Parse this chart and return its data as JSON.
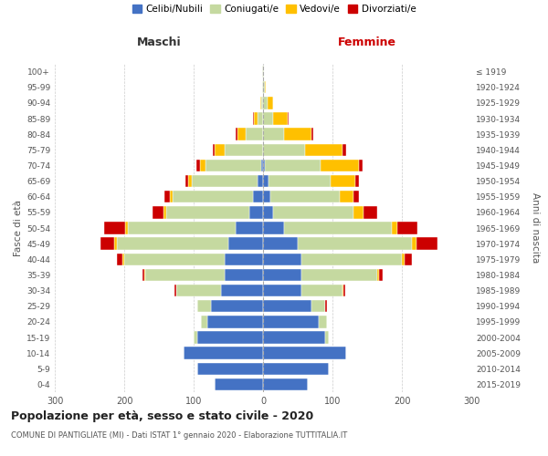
{
  "age_groups": [
    "0-4",
    "5-9",
    "10-14",
    "15-19",
    "20-24",
    "25-29",
    "30-34",
    "35-39",
    "40-44",
    "45-49",
    "50-54",
    "55-59",
    "60-64",
    "65-69",
    "70-74",
    "75-79",
    "80-84",
    "85-89",
    "90-94",
    "95-99",
    "100+"
  ],
  "birth_years": [
    "2015-2019",
    "2010-2014",
    "2005-2009",
    "2000-2004",
    "1995-1999",
    "1990-1994",
    "1985-1989",
    "1980-1984",
    "1975-1979",
    "1970-1974",
    "1965-1969",
    "1960-1964",
    "1955-1959",
    "1950-1954",
    "1945-1949",
    "1940-1944",
    "1935-1939",
    "1930-1934",
    "1925-1929",
    "1920-1924",
    "≤ 1919"
  ],
  "male": {
    "celibi": [
      70,
      95,
      115,
      95,
      80,
      75,
      60,
      55,
      55,
      50,
      40,
      20,
      15,
      8,
      3,
      0,
      0,
      0,
      0,
      0,
      0
    ],
    "coniugati": [
      0,
      0,
      0,
      5,
      10,
      20,
      65,
      115,
      145,
      160,
      155,
      120,
      115,
      95,
      80,
      55,
      25,
      8,
      2,
      1,
      1
    ],
    "vedovi": [
      0,
      0,
      0,
      0,
      0,
      0,
      0,
      1,
      2,
      4,
      4,
      4,
      4,
      5,
      8,
      15,
      12,
      5,
      2,
      0,
      0
    ],
    "divorziati": [
      0,
      0,
      0,
      0,
      0,
      0,
      2,
      3,
      8,
      20,
      30,
      15,
      8,
      4,
      5,
      2,
      2,
      1,
      0,
      0,
      0
    ]
  },
  "female": {
    "nubili": [
      65,
      95,
      120,
      90,
      80,
      70,
      55,
      55,
      55,
      50,
      30,
      15,
      10,
      8,
      3,
      0,
      0,
      0,
      0,
      0,
      0
    ],
    "coniugate": [
      0,
      0,
      0,
      5,
      12,
      20,
      60,
      110,
      145,
      165,
      155,
      115,
      100,
      90,
      80,
      60,
      30,
      15,
      6,
      2,
      1
    ],
    "vedove": [
      0,
      0,
      0,
      0,
      0,
      0,
      1,
      2,
      4,
      6,
      8,
      15,
      20,
      35,
      55,
      55,
      40,
      20,
      8,
      2,
      0
    ],
    "divorziate": [
      0,
      0,
      0,
      0,
      0,
      2,
      2,
      5,
      10,
      30,
      30,
      20,
      8,
      5,
      5,
      5,
      2,
      2,
      0,
      0,
      0
    ]
  },
  "colors": {
    "celibi": "#4472c4",
    "coniugati": "#c5d9a0",
    "vedovi": "#ffc000",
    "divorziati": "#cc0000"
  },
  "xlim": 300,
  "title": "Popolazione per età, sesso e stato civile - 2020",
  "subtitle": "COMUNE DI PANTIGLIATE (MI) - Dati ISTAT 1° gennaio 2020 - Elaborazione TUTTITALIA.IT",
  "ylabel_left": "Fasce di età",
  "ylabel_right": "Anni di nascita",
  "xlabel_maschi": "Maschi",
  "xlabel_femmine": "Femmine",
  "legend_labels": [
    "Celibi/Nubili",
    "Coniugati/e",
    "Vedovi/e",
    "Divorziati/e"
  ],
  "background_color": "#ffffff",
  "grid_color": "#cccccc"
}
